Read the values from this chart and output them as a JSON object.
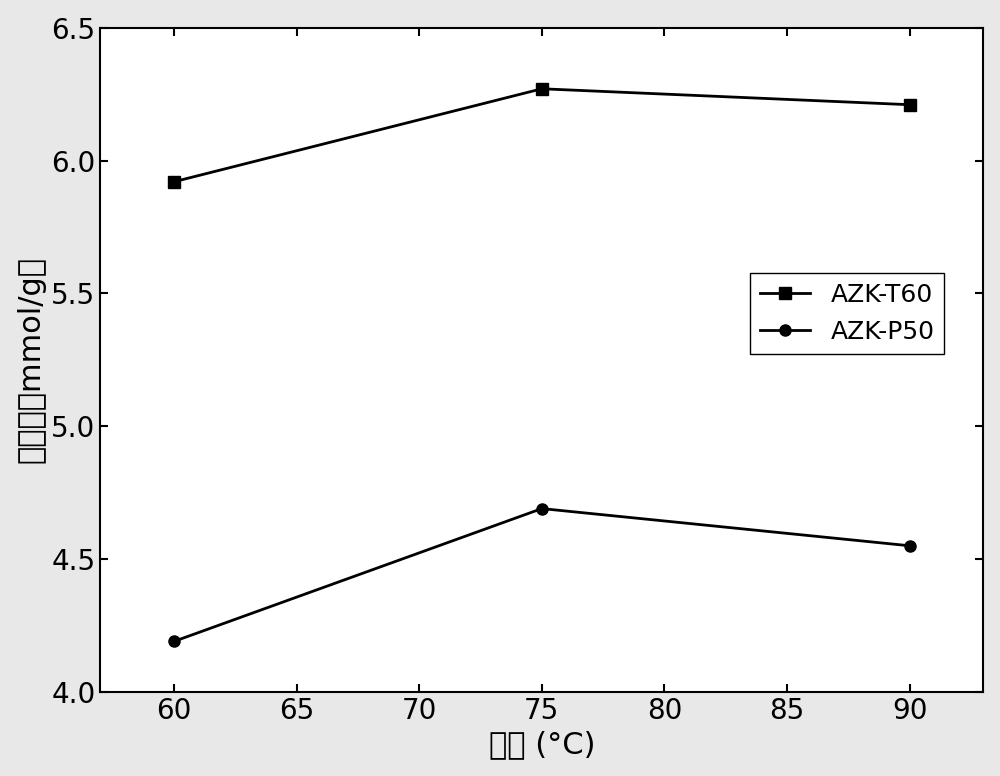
{
  "series": [
    {
      "label": "AZK-T60",
      "x": [
        60,
        75,
        90
      ],
      "y": [
        5.92,
        6.27,
        6.21
      ],
      "marker": "s",
      "color": "#000000",
      "linewidth": 2,
      "markersize": 8
    },
    {
      "label": "AZK-P50",
      "x": [
        60,
        75,
        90
      ],
      "y": [
        4.19,
        4.69,
        4.55
      ],
      "marker": "o",
      "color": "#000000",
      "linewidth": 2,
      "markersize": 8
    }
  ],
  "xlabel": "温度 (°C)",
  "ylabel": "吸附量（mmol/g）",
  "xlim": [
    57,
    93
  ],
  "ylim": [
    4.0,
    6.5
  ],
  "xticks": [
    60,
    65,
    70,
    75,
    80,
    85,
    90
  ],
  "yticks": [
    4.0,
    4.5,
    5.0,
    5.5,
    6.0,
    6.5
  ],
  "xlabel_fontsize": 22,
  "ylabel_fontsize": 22,
  "tick_fontsize": 20,
  "legend_fontsize": 18,
  "background_color": "#ffffff",
  "figure_background": "#e8e8e8"
}
